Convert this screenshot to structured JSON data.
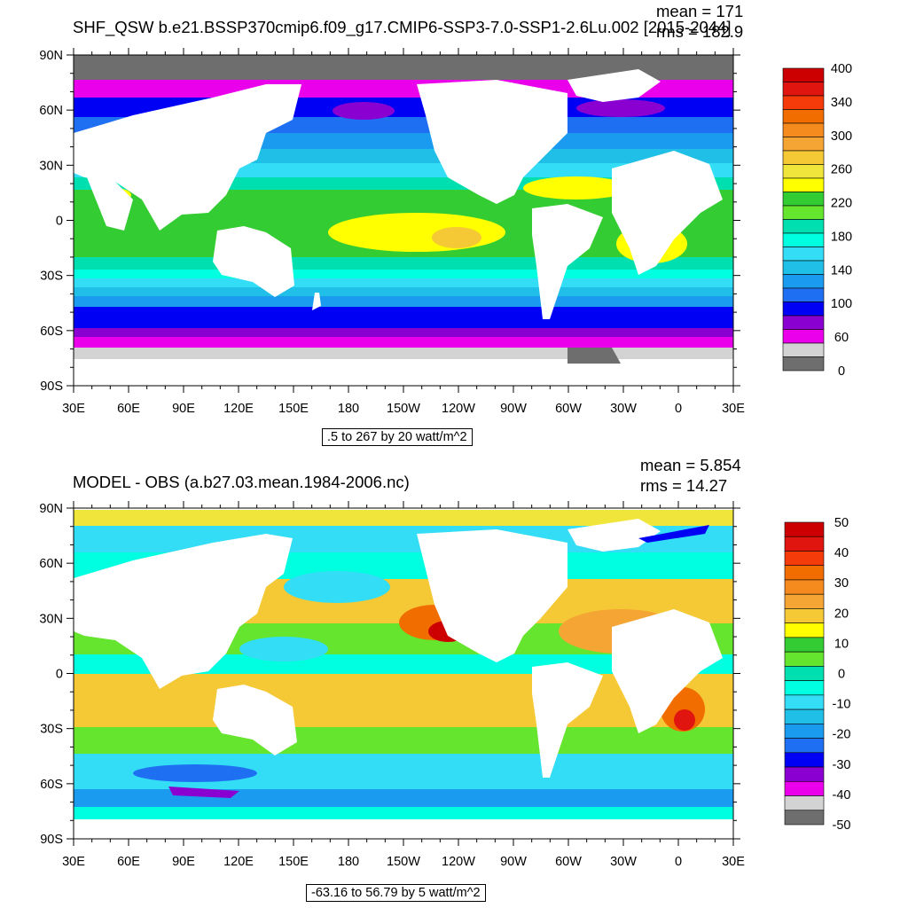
{
  "chart_data": [
    {
      "type": "heatmap",
      "title": "SHF_QSW b.e21.BSSP370cmip6.f09_g17.CMIP6-SSP3-7.0-SSP1-2.6Lu.002 [2015-2044]",
      "mean_label": "mean = 171",
      "rms_label": "rms = 182.9",
      "info_label": ".5 to 267 by 20 watt/m^2",
      "x_ticks": [
        "30E",
        "60E",
        "90E",
        "120E",
        "150E",
        "180",
        "150W",
        "120W",
        "90W",
        "60W",
        "30W",
        "0",
        "30E"
      ],
      "y_ticks": [
        "90N",
        "60N",
        "30N",
        "0",
        "30S",
        "60S",
        "90S"
      ],
      "colorbar": {
        "levels_labeled": [
          "400",
          "340",
          "300",
          "260",
          "220",
          "180",
          "140",
          "100",
          "60",
          "0"
        ],
        "colors": [
          "#cc0000",
          "#e0150f",
          "#f53b0a",
          "#f26d00",
          "#f58a1f",
          "#f5a533",
          "#f5c836",
          "#f0e63b",
          "#ffff00",
          "#33cc33",
          "#66e52e",
          "#00dfb0",
          "#00ffe0",
          "#33ddf5",
          "#20bfe8",
          "#1a9bf0",
          "#1f6ff2",
          "#0000f5",
          "#8a00d1",
          "#ea00ea",
          "#d3d3d3",
          "#6e6e6e"
        ]
      }
    },
    {
      "type": "heatmap",
      "title": "MODEL - OBS (a.b27.03.mean.1984-2006.nc)",
      "mean_label": "mean = 5.854",
      "rms_label": "rms = 14.27",
      "info_label": "-63.16 to 56.79 by 5 watt/m^2",
      "x_ticks": [
        "30E",
        "60E",
        "90E",
        "120E",
        "150E",
        "180",
        "150W",
        "120W",
        "90W",
        "60W",
        "30W",
        "0",
        "30E"
      ],
      "y_ticks": [
        "90N",
        "60N",
        "30N",
        "0",
        "30S",
        "60S",
        "90S"
      ],
      "colorbar": {
        "levels_labeled": [
          "50",
          "40",
          "30",
          "20",
          "10",
          "0",
          "-10",
          "-20",
          "-30",
          "-40",
          "-50"
        ],
        "colors": [
          "#cc0000",
          "#e0150f",
          "#f53b0a",
          "#f26d00",
          "#f58a1f",
          "#f5a533",
          "#f5c836",
          "#ffff00",
          "#33cc33",
          "#66e52e",
          "#00dfb0",
          "#00ffe0",
          "#33ddf5",
          "#20bfe8",
          "#1a9bf0",
          "#1f6ff2",
          "#0000f5",
          "#8a00d1",
          "#ea00ea",
          "#d3d3d3",
          "#6e6e6e"
        ]
      }
    }
  ]
}
